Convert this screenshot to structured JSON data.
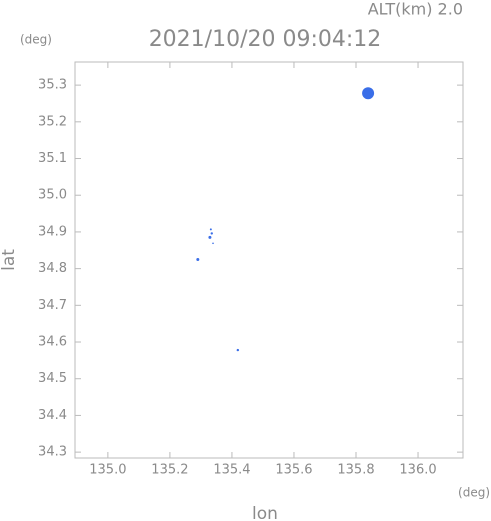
{
  "chart_data": {
    "type": "scatter",
    "title": "2021/10/20 09:04:12",
    "altitude_label": "ALT(km) 2.0",
    "y_unit": "(deg)",
    "x_unit": "(deg)",
    "xlabel": "lon",
    "ylabel": "lat",
    "xlim": [
      134.894,
      136.145
    ],
    "ylim": [
      34.284,
      35.363
    ],
    "xticks": [
      {
        "value": 135,
        "label": "135.0"
      },
      135.2,
      135.4,
      135.6,
      135.8,
      {
        "value": 136,
        "label": "136.0"
      }
    ],
    "yticks": [
      34.3,
      34.4,
      34.5,
      34.6,
      34.7,
      34.8,
      34.9,
      {
        "value": 35,
        "label": "35.0"
      },
      35.1,
      35.2,
      35.3
    ],
    "series": [
      {
        "color": "#3a6ee8",
        "x": [
          135.839,
          135.332,
          135.335,
          135.329,
          135.339,
          135.29,
          135.419
        ],
        "y": [
          35.278,
          34.907,
          34.896,
          34.885,
          34.869,
          34.825,
          34.578
        ],
        "sizes": [
          6,
          1,
          1.2,
          1.5,
          0.8,
          1.5,
          1.2
        ]
      }
    ]
  }
}
